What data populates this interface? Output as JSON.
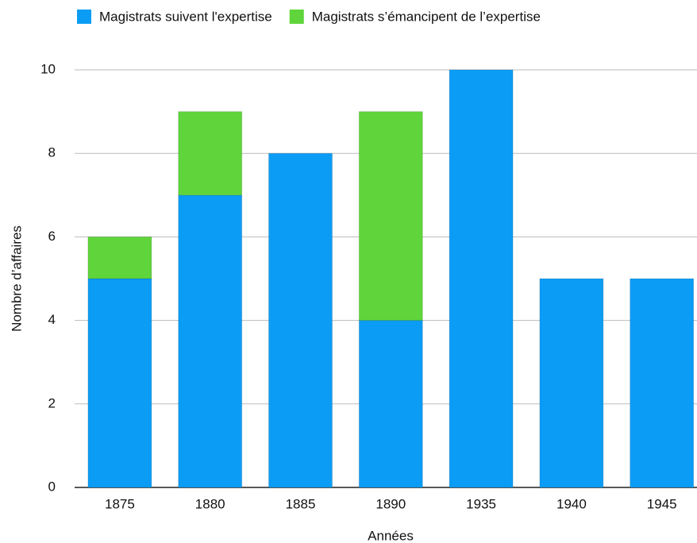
{
  "chart_data": {
    "type": "bar",
    "stacked": true,
    "x_label": "Années",
    "y_label": "Nombre d’affaires",
    "categories": [
      "1875",
      "1880",
      "1885",
      "1890",
      "1935",
      "1940",
      "1945"
    ],
    "series": [
      {
        "name": "Magistrats suivent l'expertise",
        "color": "#0b9df5",
        "values": [
          5,
          7,
          8,
          4,
          10,
          5,
          5
        ]
      },
      {
        "name": "Magistrats s’émancipent de l’expertise",
        "color": "#5fd53b",
        "values": [
          1,
          2,
          0,
          5,
          0,
          0,
          0
        ]
      }
    ],
    "ylim": [
      0,
      10
    ],
    "yticks": [
      0,
      2,
      4,
      6,
      8,
      10
    ],
    "grid": true,
    "legend": "top"
  }
}
